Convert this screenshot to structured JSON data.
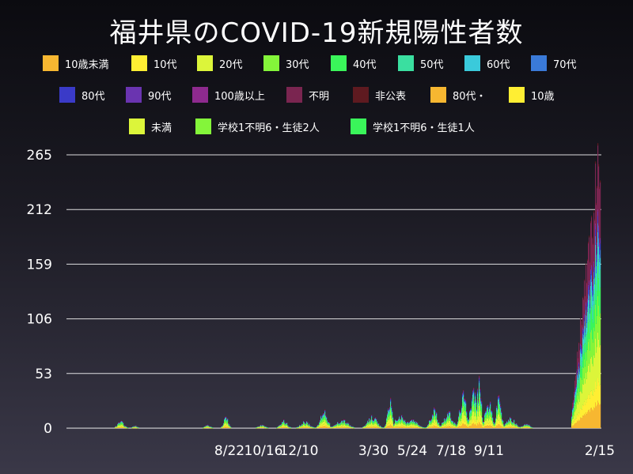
{
  "title": "福井県のCOVID-19新規陽性者数",
  "chart_data": {
    "type": "bar",
    "stacked": true,
    "yticks": [
      0,
      53,
      106,
      159,
      212,
      265
    ],
    "ylim": [
      0,
      265
    ],
    "xtick_labels": [
      "8/22",
      "10/16",
      "12/10",
      "3/30",
      "5/24",
      "7/18",
      "9/11",
      "2/15"
    ],
    "legend": [
      {
        "label": "10歳未満",
        "color": "#f7b731"
      },
      {
        "label": "10代",
        "color": "#ffee33"
      },
      {
        "label": "20代",
        "color": "#dcf53a"
      },
      {
        "label": "30代",
        "color": "#84f53a"
      },
      {
        "label": "40代",
        "color": "#3af55a"
      },
      {
        "label": "50代",
        "color": "#3adfa0"
      },
      {
        "label": "60代",
        "color": "#3acadb"
      },
      {
        "label": "70代",
        "color": "#3a7ad8"
      },
      {
        "label": "80代",
        "color": "#3a3ac8"
      },
      {
        "label": "90代",
        "color": "#6a34b0"
      },
      {
        "label": "100歳以上",
        "color": "#8e2a8e"
      },
      {
        "label": "不明",
        "color": "#7a2550"
      },
      {
        "label": "非公表",
        "color": "#5e1a20"
      },
      {
        "label": "80代・",
        "color": "#f7b731"
      },
      {
        "label": "10歳",
        "color": "#ffee33"
      },
      {
        "label": "未満",
        "color": "#dcf53a"
      },
      {
        "label": "学校1不明6・生徒2人",
        "color": "#84f53a"
      },
      {
        "label": "学校1不明6・生徒1人",
        "color": "#3af55a"
      }
    ],
    "series_totals": [
      {
        "period": "2020-04",
        "peak": 8
      },
      {
        "period": "2020-08",
        "peak": 14
      },
      {
        "period": "2020-12",
        "peak": 10
      },
      {
        "period": "2021-01",
        "peak": 22
      },
      {
        "period": "2021-04",
        "peak": 33
      },
      {
        "period": "2021-05",
        "peak": 15
      },
      {
        "period": "2021-07",
        "peak": 38
      },
      {
        "period": "2021-08",
        "peak": 52
      },
      {
        "period": "2021-09",
        "peak": 40
      },
      {
        "period": "2022-01",
        "peak": 232
      },
      {
        "period": "2022-02",
        "peak": 262
      }
    ]
  }
}
